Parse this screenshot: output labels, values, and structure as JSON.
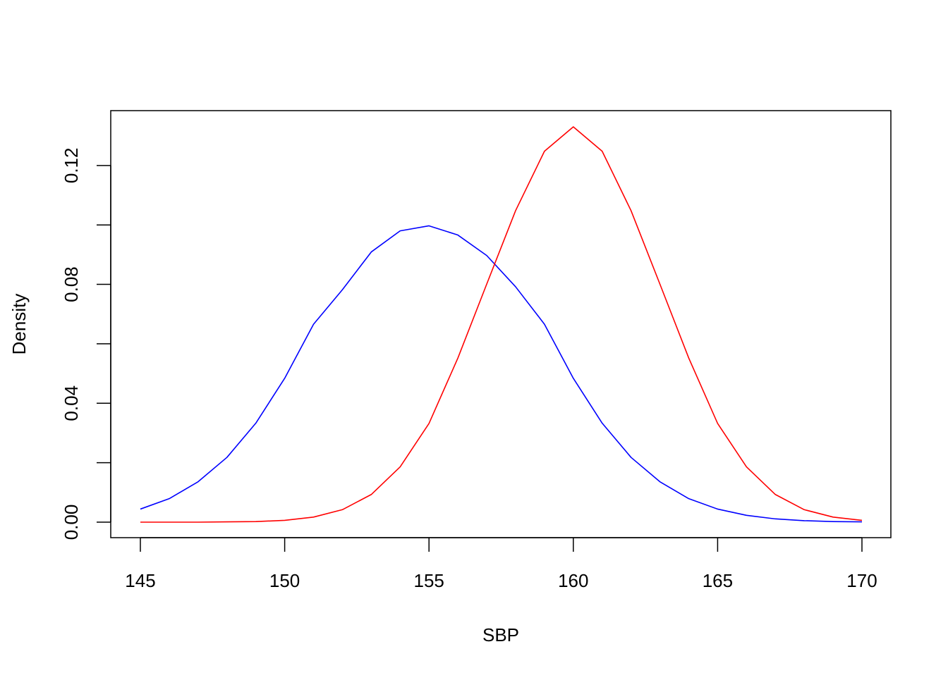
{
  "chart_data": {
    "type": "line",
    "title": "",
    "xlabel": "SBP",
    "ylabel": "Density",
    "xlim": [
      145,
      170
    ],
    "ylim": [
      0,
      0.133
    ],
    "x_ticks": [
      145,
      150,
      155,
      160,
      165,
      170
    ],
    "x_tick_labels": [
      "145",
      "150",
      "155",
      "160",
      "165",
      "170"
    ],
    "y_ticks": [
      0.0,
      0.02,
      0.04,
      0.06,
      0.08,
      0.1,
      0.12
    ],
    "y_tick_labels": [
      "0.00",
      "",
      "0.04",
      "",
      "0.08",
      "",
      "0.12"
    ],
    "grid": false,
    "legend": "none",
    "x": [
      145,
      146,
      147,
      148,
      149,
      150,
      151,
      152,
      153,
      154,
      155,
      156,
      157,
      158,
      159,
      160,
      161,
      162,
      163,
      164,
      165,
      166,
      167,
      168,
      169,
      170
    ],
    "series": [
      {
        "color": "#0000ff",
        "values": [
          0.0044,
          0.0079,
          0.0136,
          0.0218,
          0.0333,
          0.0484,
          0.0666,
          0.0782,
          0.0909,
          0.098,
          0.0997,
          0.0966,
          0.0897,
          0.0792,
          0.0666,
          0.0484,
          0.0333,
          0.0218,
          0.0136,
          0.0079,
          0.0044,
          0.0023,
          0.0011,
          0.0005,
          0.0002,
          0.0001
        ]
      },
      {
        "color": "#ff0000",
        "values": [
          0.0,
          0.0,
          0.0,
          0.0001,
          0.0002,
          0.0006,
          0.0017,
          0.0042,
          0.0093,
          0.0186,
          0.0332,
          0.0552,
          0.0801,
          0.1048,
          0.1248,
          0.133,
          0.1248,
          0.1048,
          0.0801,
          0.0552,
          0.0332,
          0.0186,
          0.0093,
          0.0042,
          0.0017,
          0.0006
        ]
      }
    ]
  }
}
